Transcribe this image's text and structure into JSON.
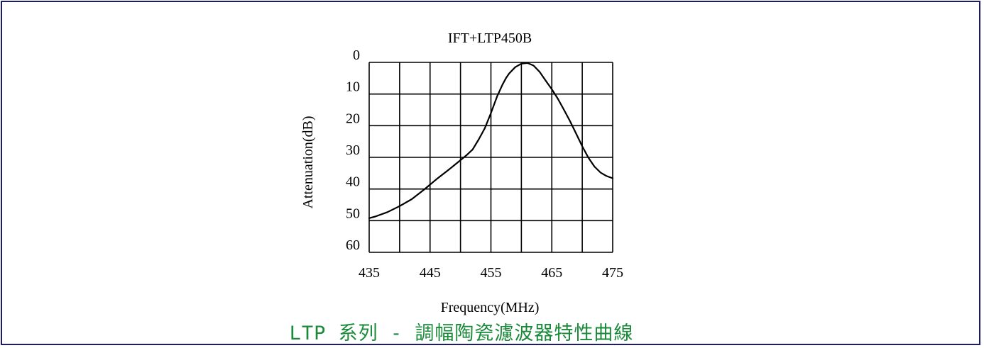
{
  "page": {
    "caption": "LTP 系列 - 調幅陶瓷濾波器特性曲線",
    "border_color": "#1a1a6e",
    "caption_color": "#1a8a3a"
  },
  "chart_data": {
    "type": "line",
    "title": "IFT+LTP450B",
    "xlabel": "Frequency(MHz)",
    "ylabel": "Attenuation(dB)",
    "xlim": [
      435,
      475
    ],
    "ylim": [
      0,
      60
    ],
    "y_inverted": true,
    "grid": true,
    "x_ticks": [
      "435",
      "445",
      "455",
      "465",
      "475"
    ],
    "y_ticks": [
      "0",
      "10",
      "20",
      "30",
      "40",
      "50",
      "60"
    ],
    "series": [
      {
        "line_color": "#000000",
        "x": [
          435,
          436,
          438,
          440,
          442,
          444,
          446,
          448,
          450,
          451,
          452,
          453,
          454,
          455,
          456,
          456.9,
          457.5,
          458,
          459,
          460,
          461,
          462,
          463,
          464,
          465,
          466,
          467,
          468,
          469,
          470,
          471,
          472,
          473,
          474,
          475
        ],
        "y": [
          49.2,
          48.7,
          47.3,
          45.4,
          43.2,
          40.2,
          37.0,
          34.0,
          30.9,
          29.3,
          27.5,
          24.3,
          20.8,
          16.0,
          10.8,
          7.0,
          4.9,
          3.5,
          1.5,
          0.4,
          0.2,
          1.0,
          3.0,
          5.8,
          8.5,
          11.5,
          15.0,
          18.6,
          22.5,
          26.5,
          30.1,
          32.9,
          34.8,
          35.9,
          36.6
        ]
      }
    ]
  }
}
